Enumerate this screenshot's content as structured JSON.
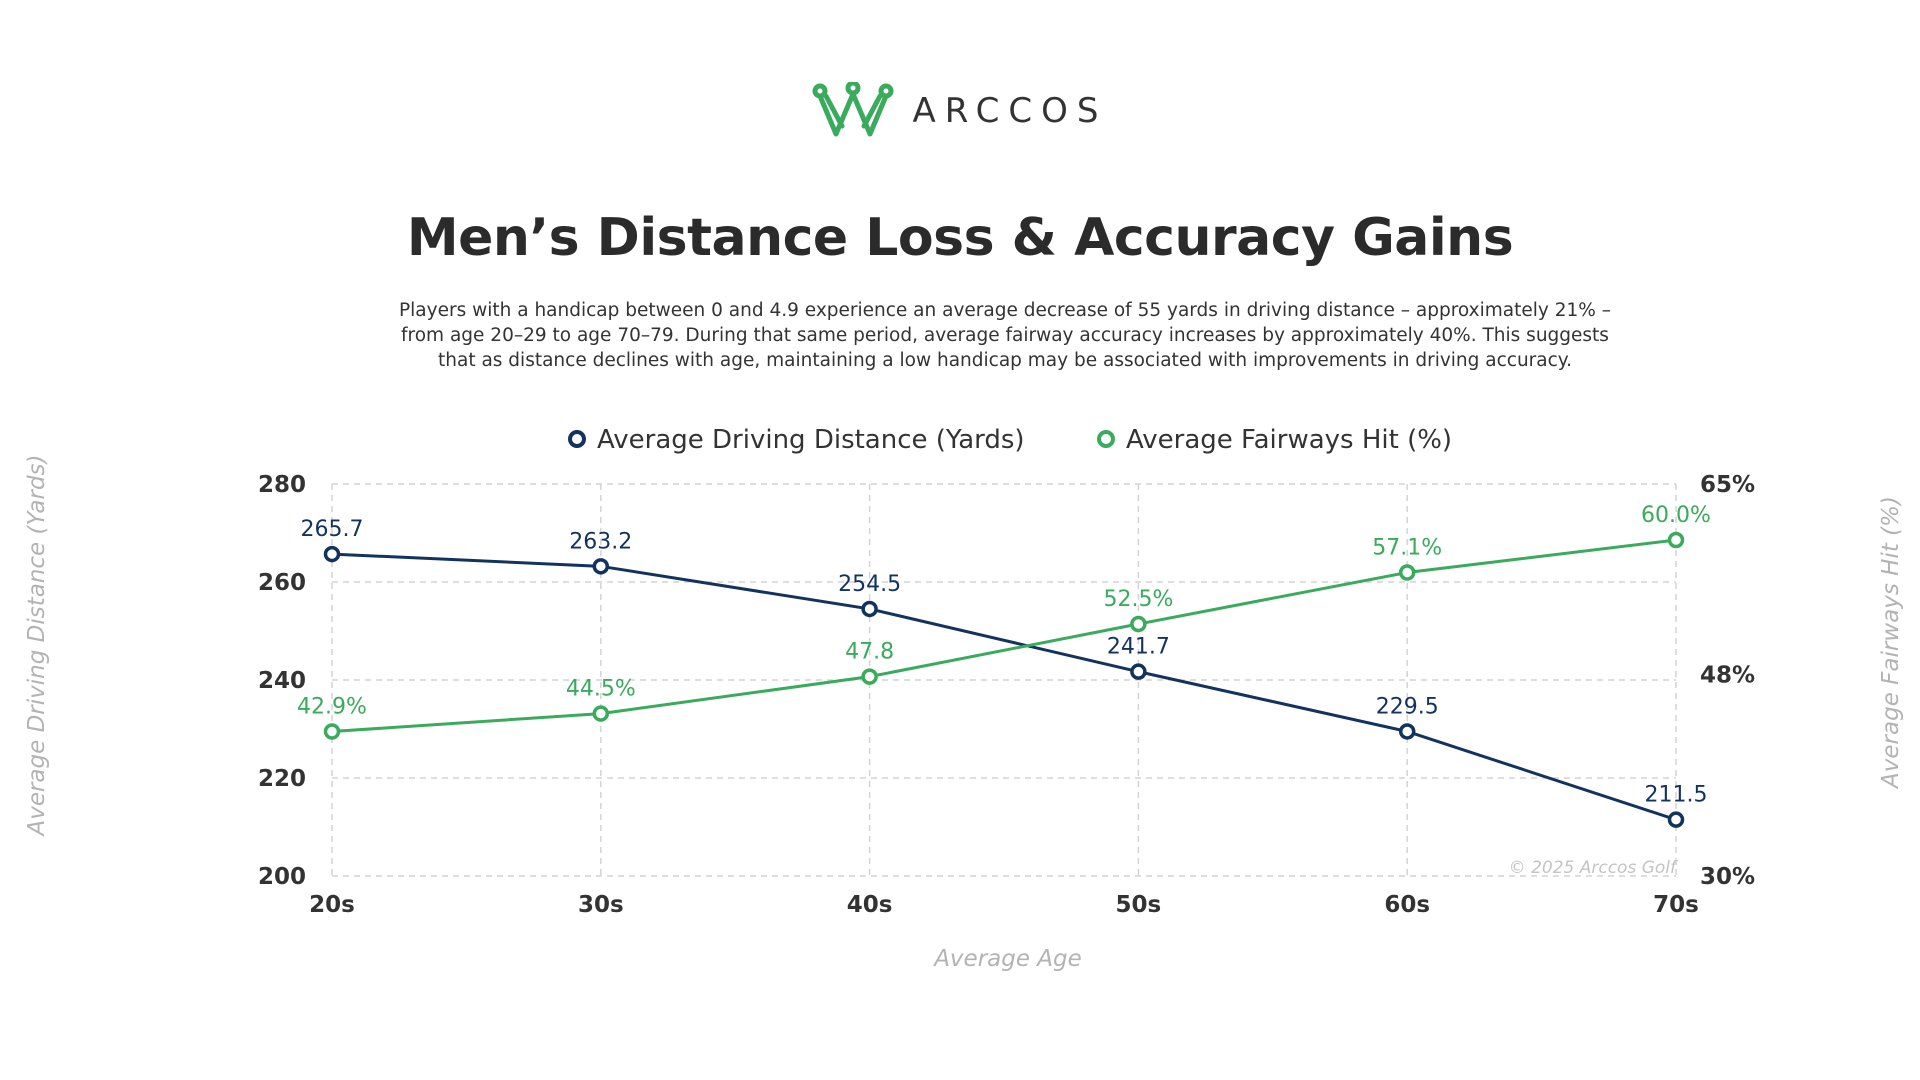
{
  "brand": {
    "logo_text": "ARCCOS",
    "accent_color": "#3aaa5c"
  },
  "header": {
    "title": "Men’s Distance Loss & Accuracy Gains",
    "subtitle": "Players with a handicap between 0 and 4.9 experience an average decrease of 55 yards in driving distance – approximately 21% – from age 20–29 to age 70–79. During that same period, average fairway accuracy increases by approximately 40%. This suggests that as distance declines with age, maintaining a low handicap may be associated with improvements in driving accuracy."
  },
  "chart_data": {
    "type": "line",
    "title": "Men’s Distance Loss & Accuracy Gains",
    "xlabel": "Average Age",
    "ylabel": "Average Driving Distance (Yards)",
    "y2label": "Average Fairways Hit (%)",
    "categories": [
      "20s",
      "30s",
      "40s",
      "50s",
      "60s",
      "70s"
    ],
    "ylim": [
      200,
      280
    ],
    "yticks": [
      200,
      220,
      240,
      260,
      280
    ],
    "y2lim": [
      30,
      65
    ],
    "y2ticks": [
      "30%",
      "48%",
      "65%"
    ],
    "y2tick_values": [
      30,
      48,
      65
    ],
    "grid": true,
    "legend_position": "top",
    "series": [
      {
        "name": "Average Driving Distance (Yards)",
        "axis": "left",
        "color": "#13335f",
        "values": [
          265.7,
          263.2,
          254.5,
          241.7,
          229.5,
          211.5
        ],
        "labels": [
          "265.7",
          "263.2",
          "254.5",
          "241.7",
          "229.5",
          "211.5"
        ]
      },
      {
        "name": "Average Fairways Hit (%)",
        "axis": "right",
        "color": "#3aaa5c",
        "values": [
          42.9,
          44.5,
          47.8,
          52.5,
          57.1,
          60.0
        ],
        "labels": [
          "42.9%",
          "44.5%",
          "47.8",
          "52.5%",
          "57.1%",
          "60.0%"
        ]
      }
    ],
    "annotation": "© 2025 Arccos Golf"
  }
}
